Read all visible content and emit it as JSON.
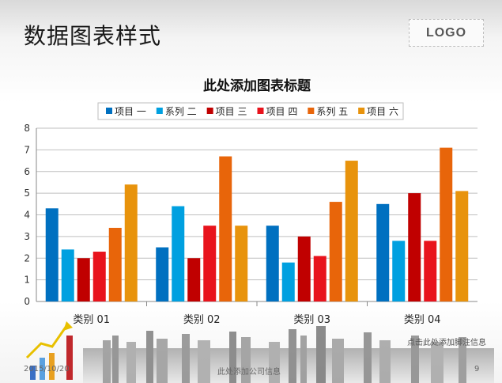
{
  "slide": {
    "title": "数据图表样式",
    "logo": "LOGO",
    "footnote": "点击此处添加脚注信息",
    "footer_date": "2015/10/20",
    "footer_center": "此处添加公司信息",
    "page_number": "9"
  },
  "chart_data": {
    "type": "bar",
    "title": "此处添加图表标题",
    "categories": [
      "类别 01",
      "类别 02",
      "类别 03",
      "类别 04"
    ],
    "series": [
      {
        "name": "项目 一",
        "color": "#0070c0",
        "values": [
          4.3,
          2.5,
          3.5,
          4.5
        ]
      },
      {
        "name": "系列 二",
        "color": "#00a0e0",
        "values": [
          2.4,
          4.4,
          1.8,
          2.8
        ]
      },
      {
        "name": "项目 三",
        "color": "#c00000",
        "values": [
          2.0,
          2.0,
          3.0,
          5.0
        ]
      },
      {
        "name": "项目 四",
        "color": "#e8131c",
        "values": [
          2.3,
          3.5,
          2.1,
          2.8
        ]
      },
      {
        "name": "系列 五",
        "color": "#e8650a",
        "values": [
          3.4,
          6.7,
          4.6,
          7.1
        ]
      },
      {
        "name": "项目 六",
        "color": "#e8930c",
        "values": [
          5.4,
          3.5,
          6.5,
          5.1
        ]
      }
    ],
    "ylim": [
      0,
      8
    ],
    "yticks": [
      "0",
      "1",
      "2",
      "3",
      "4",
      "5",
      "6",
      "7",
      "8"
    ],
    "grid": true,
    "legend_position": "top"
  }
}
